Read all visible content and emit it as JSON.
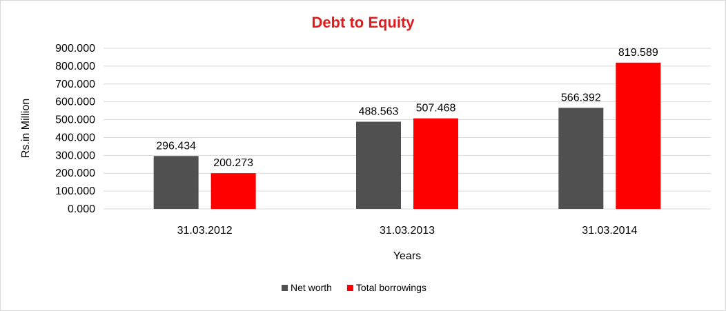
{
  "chart_data": {
    "type": "bar",
    "title": "Debt to Equity",
    "xlabel": "Years",
    "ylabel": "Rs.in Million",
    "categories": [
      "31.03.2012",
      "31.03.2013",
      "31.03.2014"
    ],
    "series": [
      {
        "name": "Net worth",
        "values": [
          296.434,
          488.563,
          566.392
        ],
        "labels": [
          "296.434",
          "488.563",
          "566.392"
        ],
        "color": "#505050"
      },
      {
        "name": "Total borrowings",
        "values": [
          200.273,
          507.468,
          819.589
        ],
        "labels": [
          "200.273",
          "507.468",
          "819.589"
        ],
        "color": "#ff0000"
      }
    ],
    "ylim": [
      0,
      900
    ],
    "yticks": [
      "0.000",
      "100.000",
      "200.000",
      "300.000",
      "400.000",
      "500.000",
      "600.000",
      "700.000",
      "800.000",
      "900.000"
    ],
    "grid": true,
    "legend_position": "bottom",
    "title_color": "#e31b1b"
  }
}
